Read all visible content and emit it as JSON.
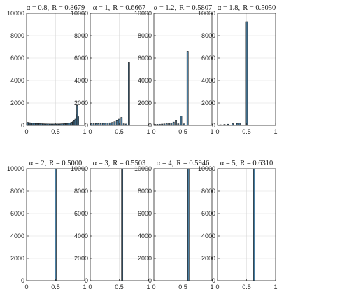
{
  "chart_data": [
    {
      "type": "bar",
      "title": "α = 0.8,  R = 0.8679",
      "title_parts": {
        "param": "α = 0.8,",
        "r": "R = 0.8679"
      },
      "xlim": [
        0,
        1
      ],
      "ylim": [
        0,
        10000
      ],
      "xticks": [
        "0",
        "0.5",
        "1"
      ],
      "yticks": [
        "0",
        "2000",
        "4000",
        "6000",
        "8000",
        "10000"
      ],
      "grid": true,
      "bins": [
        {
          "x": 0.02,
          "v": 280
        },
        {
          "x": 0.04,
          "v": 260
        },
        {
          "x": 0.06,
          "v": 240
        },
        {
          "x": 0.08,
          "v": 220
        },
        {
          "x": 0.1,
          "v": 210
        },
        {
          "x": 0.12,
          "v": 200
        },
        {
          "x": 0.14,
          "v": 190
        },
        {
          "x": 0.16,
          "v": 180
        },
        {
          "x": 0.18,
          "v": 175
        },
        {
          "x": 0.2,
          "v": 170
        },
        {
          "x": 0.22,
          "v": 165
        },
        {
          "x": 0.24,
          "v": 160
        },
        {
          "x": 0.26,
          "v": 155
        },
        {
          "x": 0.28,
          "v": 150
        },
        {
          "x": 0.3,
          "v": 145
        },
        {
          "x": 0.32,
          "v": 140
        },
        {
          "x": 0.34,
          "v": 140
        },
        {
          "x": 0.36,
          "v": 135
        },
        {
          "x": 0.38,
          "v": 135
        },
        {
          "x": 0.4,
          "v": 130
        },
        {
          "x": 0.42,
          "v": 130
        },
        {
          "x": 0.44,
          "v": 130
        },
        {
          "x": 0.46,
          "v": 130
        },
        {
          "x": 0.48,
          "v": 130
        },
        {
          "x": 0.5,
          "v": 130
        },
        {
          "x": 0.52,
          "v": 130
        },
        {
          "x": 0.54,
          "v": 135
        },
        {
          "x": 0.56,
          "v": 135
        },
        {
          "x": 0.58,
          "v": 140
        },
        {
          "x": 0.6,
          "v": 145
        },
        {
          "x": 0.62,
          "v": 150
        },
        {
          "x": 0.64,
          "v": 155
        },
        {
          "x": 0.66,
          "v": 165
        },
        {
          "x": 0.68,
          "v": 175
        },
        {
          "x": 0.7,
          "v": 185
        },
        {
          "x": 0.72,
          "v": 200
        },
        {
          "x": 0.74,
          "v": 220
        },
        {
          "x": 0.76,
          "v": 250
        },
        {
          "x": 0.78,
          "v": 290
        },
        {
          "x": 0.8,
          "v": 350
        },
        {
          "x": 0.82,
          "v": 430
        },
        {
          "x": 0.84,
          "v": 560
        },
        {
          "x": 0.86,
          "v": 950
        },
        {
          "x": 0.87,
          "v": 1800
        },
        {
          "x": 0.89,
          "v": 780
        }
      ],
      "bin_width": 0.018
    },
    {
      "type": "bar",
      "title": "α = 1,  R = 0.6667",
      "title_parts": {
        "param": "α = 1,",
        "r": "R = 0.6667"
      },
      "xlim": [
        0,
        1
      ],
      "ylim": [
        0,
        10000
      ],
      "xticks": [
        "0",
        "0.5",
        "1"
      ],
      "yticks": [
        "0",
        "2000",
        "4000",
        "6000",
        "8000",
        "10000"
      ],
      "grid": true,
      "bins": [
        {
          "x": 0.02,
          "v": 160
        },
        {
          "x": 0.06,
          "v": 160
        },
        {
          "x": 0.1,
          "v": 165
        },
        {
          "x": 0.14,
          "v": 170
        },
        {
          "x": 0.18,
          "v": 175
        },
        {
          "x": 0.22,
          "v": 185
        },
        {
          "x": 0.26,
          "v": 195
        },
        {
          "x": 0.3,
          "v": 210
        },
        {
          "x": 0.34,
          "v": 235
        },
        {
          "x": 0.38,
          "v": 270
        },
        {
          "x": 0.42,
          "v": 330
        },
        {
          "x": 0.46,
          "v": 420
        },
        {
          "x": 0.5,
          "v": 560
        },
        {
          "x": 0.54,
          "v": 720
        },
        {
          "x": 0.58,
          "v": 150
        },
        {
          "x": 0.62,
          "v": 130
        },
        {
          "x": 0.667,
          "v": 5600
        }
      ],
      "bin_width": 0.025
    },
    {
      "type": "bar",
      "title": "α = 1.2,  R = 0.5807",
      "title_parts": {
        "param": "α = 1.2,",
        "r": "R = 0.5807"
      },
      "xlim": [
        0,
        1
      ],
      "ylim": [
        0,
        10000
      ],
      "xticks": [
        "0",
        "0.5",
        "1"
      ],
      "yticks": [
        "0",
        "2000",
        "4000",
        "6000",
        "8000",
        "10000"
      ],
      "grid": true,
      "bins": [
        {
          "x": 0.02,
          "v": 90
        },
        {
          "x": 0.06,
          "v": 100
        },
        {
          "x": 0.1,
          "v": 110
        },
        {
          "x": 0.14,
          "v": 125
        },
        {
          "x": 0.18,
          "v": 140
        },
        {
          "x": 0.22,
          "v": 160
        },
        {
          "x": 0.26,
          "v": 190
        },
        {
          "x": 0.3,
          "v": 230
        },
        {
          "x": 0.34,
          "v": 300
        },
        {
          "x": 0.38,
          "v": 420
        },
        {
          "x": 0.42,
          "v": 150
        },
        {
          "x": 0.47,
          "v": 850
        },
        {
          "x": 0.52,
          "v": 140
        },
        {
          "x": 0.581,
          "v": 6600
        }
      ],
      "bin_width": 0.025
    },
    {
      "type": "bar",
      "title": "α = 1.8,  R = 0.5050",
      "title_parts": {
        "param": "α = 1.8,",
        "r": "R = 0.5050"
      },
      "xlim": [
        0,
        1
      ],
      "ylim": [
        0,
        10000
      ],
      "xticks": [
        "0",
        "0.5",
        "1"
      ],
      "yticks": [
        "0",
        "2000",
        "4000",
        "6000",
        "8000",
        "10000"
      ],
      "grid": true,
      "bins": [
        {
          "x": 0.05,
          "v": 60
        },
        {
          "x": 0.12,
          "v": 90
        },
        {
          "x": 0.18,
          "v": 110
        },
        {
          "x": 0.26,
          "v": 160
        },
        {
          "x": 0.34,
          "v": 180
        },
        {
          "x": 0.38,
          "v": 200
        },
        {
          "x": 0.505,
          "v": 9250
        }
      ],
      "bin_width": 0.025
    },
    {
      "type": "bar",
      "title": "α = 2,  R = 0.5000",
      "title_parts": {
        "param": "α = 2,",
        "r": "R = 0.5000"
      },
      "xlim": [
        0,
        1
      ],
      "ylim": [
        0,
        10000
      ],
      "xticks": [
        "0",
        "0.5",
        "1"
      ],
      "yticks": [
        "0",
        "2000",
        "4000",
        "6000",
        "8000",
        "10000"
      ],
      "grid": true,
      "bins": [
        {
          "x": 0.5,
          "v": 10000
        }
      ],
      "bin_width": 0.025
    },
    {
      "type": "bar",
      "title": "α = 3,  R = 0.5503",
      "title_parts": {
        "param": "α = 3,",
        "r": "R = 0.5503"
      },
      "xlim": [
        0,
        1
      ],
      "ylim": [
        0,
        10000
      ],
      "xticks": [
        "0",
        "0.5",
        "1"
      ],
      "yticks": [
        "0",
        "2000",
        "4000",
        "6000",
        "8000",
        "10000"
      ],
      "grid": true,
      "bins": [
        {
          "x": 0.5503,
          "v": 10000
        }
      ],
      "bin_width": 0.025
    },
    {
      "type": "bar",
      "title": "α = 4,  R = 0.5946",
      "title_parts": {
        "param": "α = 4,",
        "r": "R = 0.5946"
      },
      "xlim": [
        0,
        1
      ],
      "ylim": [
        0,
        10000
      ],
      "xticks": [
        "0",
        "0.5",
        "1"
      ],
      "yticks": [
        "0",
        "2000",
        "4000",
        "6000",
        "8000",
        "10000"
      ],
      "grid": true,
      "bins": [
        {
          "x": 0.5946,
          "v": 10000
        }
      ],
      "bin_width": 0.025
    },
    {
      "type": "bar",
      "title": "α = 5,  R = 0.6310",
      "title_parts": {
        "param": "α = 5,",
        "r": "R = 0.6310"
      },
      "xlim": [
        0,
        1
      ],
      "ylim": [
        0,
        10000
      ],
      "xticks": [
        "0",
        "0.5",
        "1"
      ],
      "yticks": [
        "0",
        "2000",
        "4000",
        "6000",
        "8000",
        "10000"
      ],
      "grid": true,
      "bins": [
        {
          "x": 0.631,
          "v": 10000
        }
      ],
      "bin_width": 0.025
    }
  ],
  "colors": {
    "bar_fill": "#4a7fa3",
    "bar_edge": "#1c1c1c",
    "grid": "#d9d9d9",
    "axis": "#262626"
  }
}
